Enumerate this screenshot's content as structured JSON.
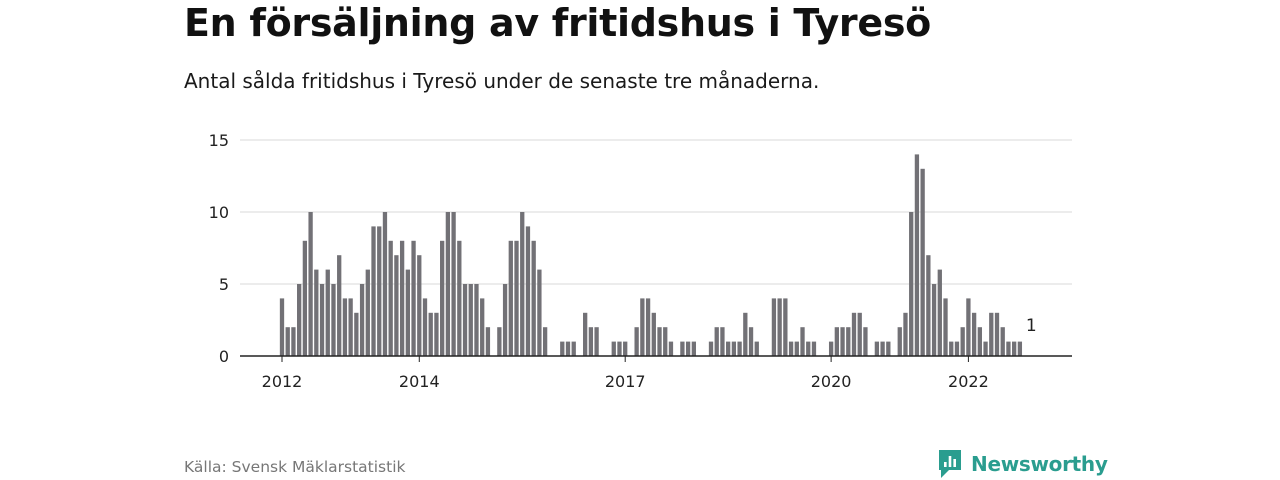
{
  "title": "En försäljning av fritidshus i Tyresö",
  "subtitle": "Antal sålda fritidshus i Tyresö under de senaste tre månaderna.",
  "source": "Källa: Svensk Mäklarstatistik",
  "brand": {
    "name": "Newsworthy",
    "color": "#2a9d8f",
    "icon": "newsworthy-logo-icon"
  },
  "colors": {
    "bar": "#727176",
    "highlight": "#1aa39a",
    "grid": "#d9d9d9",
    "axis": "#222222"
  },
  "chart_data": {
    "type": "bar",
    "title": "",
    "xlabel": "",
    "ylabel": "",
    "ylim": [
      0,
      15
    ],
    "yticks": [
      "0",
      "5",
      "10",
      "15"
    ],
    "xticks": [
      {
        "label": "2012",
        "at": "2012-01"
      },
      {
        "label": "2014",
        "at": "2014-01"
      },
      {
        "label": "2017",
        "at": "2017-01"
      },
      {
        "label": "2020",
        "at": "2020-01"
      },
      {
        "label": "2022",
        "at": "2022-01"
      }
    ],
    "annotation": {
      "at": "2022-12",
      "text": "1"
    },
    "highlight": "2022-12",
    "series": [
      {
        "name": "",
        "values": [
          [
            "2012-01",
            4
          ],
          [
            "2012-02",
            2
          ],
          [
            "2012-03",
            2
          ],
          [
            "2012-04",
            5
          ],
          [
            "2012-05",
            8
          ],
          [
            "2012-06",
            10
          ],
          [
            "2012-07",
            6
          ],
          [
            "2012-08",
            5
          ],
          [
            "2012-09",
            6
          ],
          [
            "2012-10",
            5
          ],
          [
            "2012-11",
            7
          ],
          [
            "2012-12",
            4
          ],
          [
            "2013-01",
            4
          ],
          [
            "2013-02",
            3
          ],
          [
            "2013-03",
            5
          ],
          [
            "2013-04",
            6
          ],
          [
            "2013-05",
            9
          ],
          [
            "2013-06",
            9
          ],
          [
            "2013-07",
            10
          ],
          [
            "2013-08",
            8
          ],
          [
            "2013-09",
            7
          ],
          [
            "2013-10",
            8
          ],
          [
            "2013-11",
            6
          ],
          [
            "2013-12",
            8
          ],
          [
            "2014-01",
            7
          ],
          [
            "2014-02",
            4
          ],
          [
            "2014-03",
            3
          ],
          [
            "2014-04",
            3
          ],
          [
            "2014-05",
            8
          ],
          [
            "2014-06",
            10
          ],
          [
            "2014-07",
            10
          ],
          [
            "2014-08",
            8
          ],
          [
            "2014-09",
            5
          ],
          [
            "2014-10",
            5
          ],
          [
            "2014-11",
            5
          ],
          [
            "2014-12",
            4
          ],
          [
            "2015-01",
            2
          ],
          [
            "2015-02",
            0
          ],
          [
            "2015-03",
            2
          ],
          [
            "2015-04",
            5
          ],
          [
            "2015-05",
            8
          ],
          [
            "2015-06",
            8
          ],
          [
            "2015-07",
            10
          ],
          [
            "2015-08",
            9
          ],
          [
            "2015-09",
            8
          ],
          [
            "2015-10",
            6
          ],
          [
            "2015-11",
            2
          ],
          [
            "2015-12",
            0
          ],
          [
            "2016-01",
            0
          ],
          [
            "2016-02",
            1
          ],
          [
            "2016-03",
            1
          ],
          [
            "2016-04",
            1
          ],
          [
            "2016-05",
            0
          ],
          [
            "2016-06",
            3
          ],
          [
            "2016-07",
            2
          ],
          [
            "2016-08",
            2
          ],
          [
            "2016-09",
            0
          ],
          [
            "2016-10",
            0
          ],
          [
            "2016-11",
            1
          ],
          [
            "2016-12",
            1
          ],
          [
            "2017-01",
            1
          ],
          [
            "2017-02",
            0
          ],
          [
            "2017-03",
            2
          ],
          [
            "2017-04",
            4
          ],
          [
            "2017-05",
            4
          ],
          [
            "2017-06",
            3
          ],
          [
            "2017-07",
            2
          ],
          [
            "2017-08",
            2
          ],
          [
            "2017-09",
            1
          ],
          [
            "2017-10",
            0
          ],
          [
            "2017-11",
            1
          ],
          [
            "2017-12",
            1
          ],
          [
            "2018-01",
            1
          ],
          [
            "2018-02",
            0
          ],
          [
            "2018-03",
            0
          ],
          [
            "2018-04",
            1
          ],
          [
            "2018-05",
            2
          ],
          [
            "2018-06",
            2
          ],
          [
            "2018-07",
            1
          ],
          [
            "2018-08",
            1
          ],
          [
            "2018-09",
            1
          ],
          [
            "2018-10",
            3
          ],
          [
            "2018-11",
            2
          ],
          [
            "2018-12",
            1
          ],
          [
            "2019-01",
            0
          ],
          [
            "2019-02",
            0
          ],
          [
            "2019-03",
            4
          ],
          [
            "2019-04",
            4
          ],
          [
            "2019-05",
            4
          ],
          [
            "2019-06",
            1
          ],
          [
            "2019-07",
            1
          ],
          [
            "2019-08",
            2
          ],
          [
            "2019-09",
            1
          ],
          [
            "2019-10",
            1
          ],
          [
            "2019-11",
            0
          ],
          [
            "2019-12",
            0
          ],
          [
            "2020-01",
            1
          ],
          [
            "2020-02",
            2
          ],
          [
            "2020-03",
            2
          ],
          [
            "2020-04",
            2
          ],
          [
            "2020-05",
            3
          ],
          [
            "2020-06",
            3
          ],
          [
            "2020-07",
            2
          ],
          [
            "2020-08",
            0
          ],
          [
            "2020-09",
            1
          ],
          [
            "2020-10",
            1
          ],
          [
            "2020-11",
            1
          ],
          [
            "2020-12",
            0
          ],
          [
            "2021-01",
            2
          ],
          [
            "2021-02",
            3
          ],
          [
            "2021-03",
            10
          ],
          [
            "2021-04",
            14
          ],
          [
            "2021-05",
            13
          ],
          [
            "2021-06",
            7
          ],
          [
            "2021-07",
            5
          ],
          [
            "2021-08",
            6
          ],
          [
            "2021-09",
            4
          ],
          [
            "2021-10",
            1
          ],
          [
            "2021-11",
            1
          ],
          [
            "2021-12",
            2
          ],
          [
            "2022-01",
            4
          ],
          [
            "2022-02",
            3
          ],
          [
            "2022-03",
            2
          ],
          [
            "2022-04",
            1
          ],
          [
            "2022-05",
            3
          ],
          [
            "2022-06",
            3
          ],
          [
            "2022-07",
            2
          ],
          [
            "2022-08",
            1
          ],
          [
            "2022-09",
            1
          ],
          [
            "2022-10",
            1
          ]
        ]
      }
    ]
  }
}
